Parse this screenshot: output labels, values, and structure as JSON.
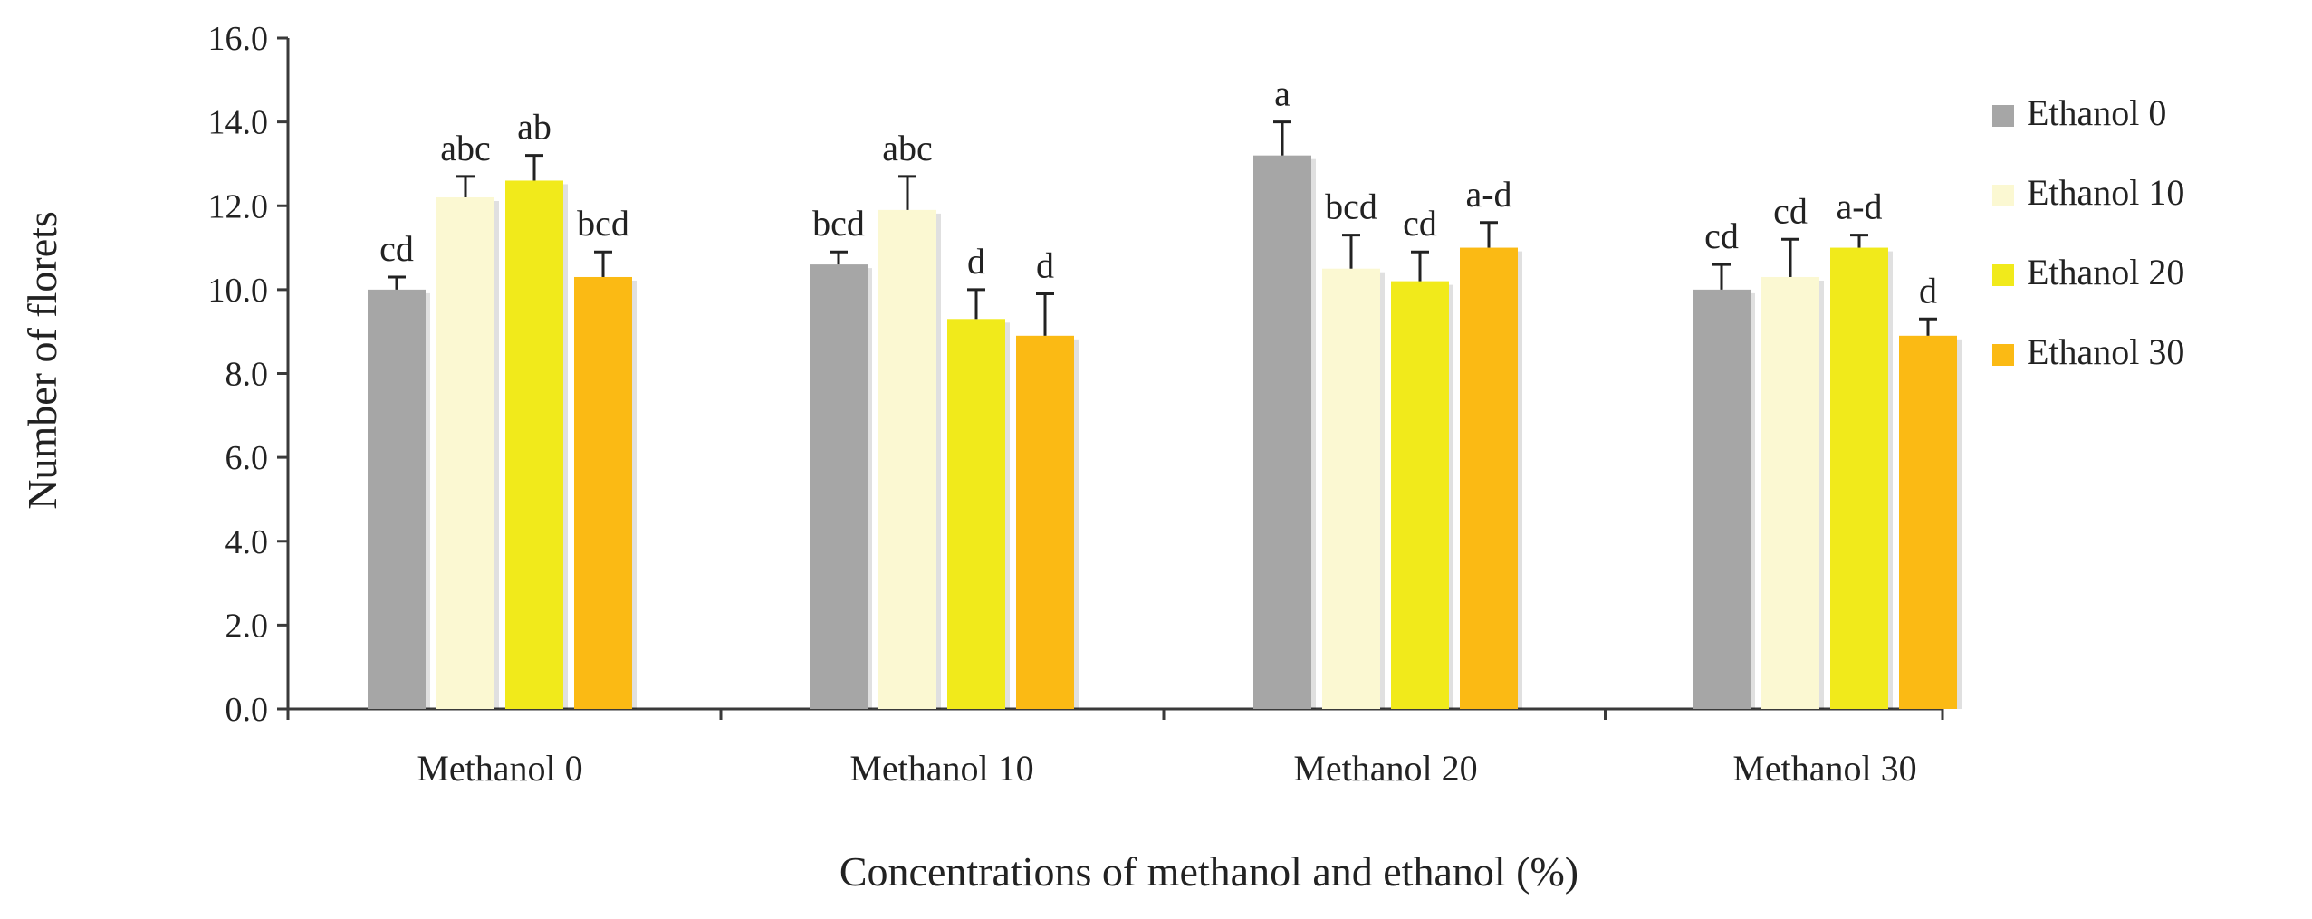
{
  "chart_data": {
    "type": "bar",
    "xlabel": "Concentrations of methanol and ethanol (%)",
    "ylabel": "Number of florets",
    "ylim": [
      0,
      16
    ],
    "yticks": [
      "0.0",
      "2.0",
      "4.0",
      "6.0",
      "8.0",
      "10.0",
      "12.0",
      "14.0",
      "16.0"
    ],
    "grid": false,
    "legend_position": "right",
    "categories": [
      "Methanol 0",
      "Methanol 10",
      "Methanol 20",
      "Methanol 30"
    ],
    "series": [
      {
        "name": "Ethanol 0",
        "color": "#a6a6a6",
        "values": [
          10.0,
          10.6,
          13.2,
          10.0
        ],
        "errors": [
          0.3,
          0.3,
          0.8,
          0.6
        ],
        "labels": [
          "cd",
          "bcd",
          "a",
          "cd"
        ]
      },
      {
        "name": "Ethanol 10",
        "color": "#fbf8d2",
        "values": [
          12.2,
          11.9,
          10.5,
          10.3
        ],
        "errors": [
          0.5,
          0.8,
          0.8,
          0.9
        ],
        "labels": [
          "abc",
          "abc",
          "bcd",
          "cd"
        ]
      },
      {
        "name": "Ethanol 20",
        "color": "#f1ea1b",
        "values": [
          12.6,
          9.3,
          10.2,
          11.0
        ],
        "errors": [
          0.6,
          0.7,
          0.7,
          0.3
        ],
        "labels": [
          "ab",
          "d",
          "cd",
          "a-d"
        ]
      },
      {
        "name": "Ethanol 30",
        "color": "#fbba14",
        "values": [
          10.3,
          8.9,
          11.0,
          8.9
        ],
        "errors": [
          0.6,
          1.0,
          0.6,
          0.4
        ],
        "labels": [
          "bcd",
          "d",
          "a-d",
          "d"
        ]
      }
    ]
  }
}
